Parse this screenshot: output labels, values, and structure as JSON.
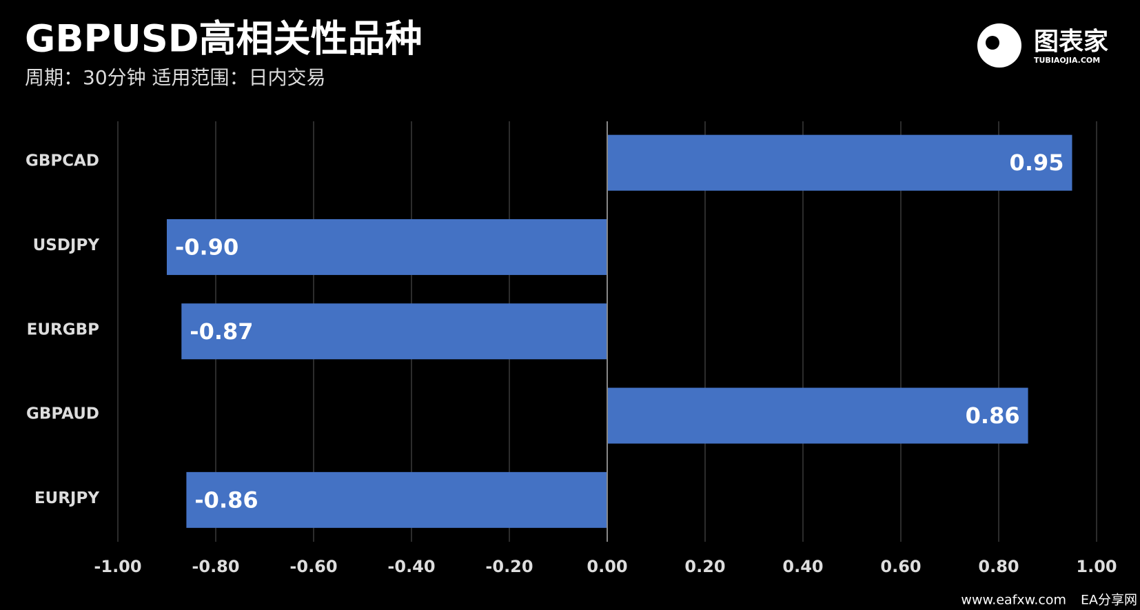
{
  "chart_data": {
    "type": "hbar",
    "title": "GBPUSD高相关性品种",
    "subtitle": "周期：30分钟  适用范围：日内交易",
    "categories": [
      "GBPCAD",
      "USDJPY",
      "EURGBP",
      "GBPAUD",
      "EURJPY"
    ],
    "values": [
      0.95,
      -0.9,
      -0.87,
      0.86,
      -0.86
    ],
    "value_labels": [
      "0.95",
      "-0.90",
      "-0.87",
      "0.86",
      "-0.86"
    ],
    "color": "#4472c4",
    "xlim": [
      -1,
      1
    ],
    "xticks": [
      {
        "value": -1,
        "label": "-1.00"
      },
      {
        "value": -0.8,
        "label": "-0.80"
      },
      {
        "value": -0.6,
        "label": "-0.60"
      },
      {
        "value": -0.4,
        "label": "-0.40"
      },
      {
        "value": -0.2,
        "label": "-0.20"
      },
      {
        "value": 0,
        "label": "0.00"
      },
      {
        "value": 0.2,
        "label": "0.20"
      },
      {
        "value": 0.4,
        "label": "0.40"
      },
      {
        "value": 0.6,
        "label": "0.60"
      },
      {
        "value": 0.8,
        "label": "0.80"
      },
      {
        "value": 1,
        "label": "1.00"
      }
    ],
    "grid": true
  },
  "logo": {
    "name": "图表家",
    "domain": "TUBIAOJIA.COM"
  },
  "watermark": {
    "site": "www.eafxw.com",
    "name": "EA分享网"
  }
}
